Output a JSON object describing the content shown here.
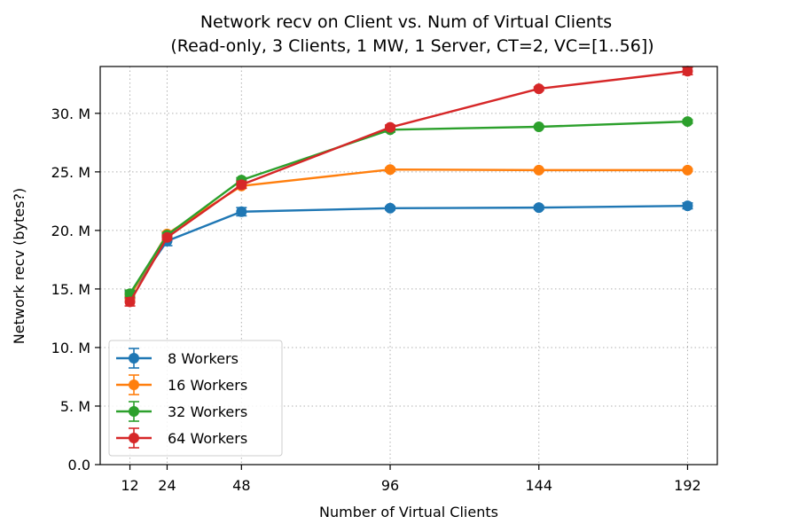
{
  "chart_data": {
    "type": "line",
    "title": "Network recv on Client vs. Num of Virtual Clients",
    "subtitle": "(Read-only, 3 Clients, 1 MW, 1 Server, CT=2, VC=[1..56])",
    "xlabel": "Number of Virtual Clients",
    "ylabel": "Network recv (bytes?)",
    "x": [
      12,
      24,
      48,
      96,
      144,
      192
    ],
    "x_ticks": [
      12,
      24,
      48,
      96,
      144,
      192
    ],
    "x_tick_labels": [
      "12",
      "24",
      "48",
      "96",
      "144",
      "192"
    ],
    "xlim": [
      2.4,
      201.6
    ],
    "ylim": [
      0,
      34
    ],
    "y_ticks": [
      0,
      5,
      10,
      15,
      20,
      25,
      30
    ],
    "y_tick_labels": [
      "0.0",
      "5. M",
      "10. M",
      "15. M",
      "20. M",
      "25. M",
      "30. M"
    ],
    "y_unit": "M",
    "grid": true,
    "legend_position": "lower-left",
    "series": [
      {
        "name": "8 Workers",
        "color": "#1f77b4",
        "values": [
          14.5,
          19.1,
          21.6,
          21.9,
          21.95,
          22.1
        ],
        "errors": [
          0.3,
          0.4,
          0.35,
          0.15,
          0.15,
          0.25
        ]
      },
      {
        "name": "16 Workers",
        "color": "#ff7f0e",
        "values": [
          14.4,
          19.7,
          23.8,
          25.2,
          25.15,
          25.15
        ],
        "errors": [
          0.3,
          0.2,
          0.2,
          0.15,
          0.1,
          0.1
        ]
      },
      {
        "name": "32 Workers",
        "color": "#2ca02c",
        "values": [
          14.6,
          19.6,
          24.3,
          28.6,
          28.85,
          29.3
        ],
        "errors": [
          0.3,
          0.2,
          0.2,
          0.2,
          0.1,
          0.15
        ]
      },
      {
        "name": "64 Workers",
        "color": "#d62728",
        "values": [
          13.9,
          19.4,
          23.9,
          28.8,
          32.1,
          33.6
        ],
        "errors": [
          0.35,
          0.2,
          0.3,
          0.2,
          0.15,
          0.3
        ]
      }
    ]
  }
}
